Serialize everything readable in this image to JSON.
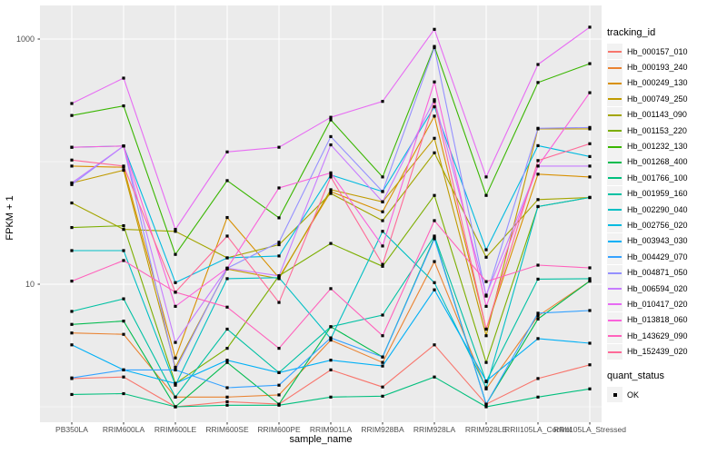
{
  "figure": {
    "background": "#FFFFFF",
    "panel_background": "#EBEBEB",
    "grid_color": "#FFFFFF",
    "point_color": "#000000",
    "axis_text_color": "#4D4D4D",
    "tick_color": "#333333"
  },
  "axes": {
    "x_title": "sample_name",
    "y_title": "FPKM + 1",
    "y_ticks": [
      {
        "label": "1000",
        "value": 1000
      },
      {
        "label": "10",
        "value": 10
      }
    ]
  },
  "legend": {
    "tracking_title": "tracking_id",
    "quant_title": "quant_status",
    "quant_ok_label": "OK"
  },
  "chart_data": {
    "type": "line",
    "title": "",
    "xlabel": "sample_name",
    "ylabel": "FPKM + 1",
    "y_scale": "log10",
    "ylim": [
      0.75,
      1900
    ],
    "grid": true,
    "legend_position": "right",
    "point_marker": "black-square",
    "major_gridlines_y": [
      10,
      1000
    ],
    "minor_gridlines_y": [
      1,
      100
    ],
    "categories": [
      "PB350LA",
      "RRIM600LA",
      "RRIM600LE",
      "RRIM600SE",
      "RRIM600PE",
      "RRIM901LA",
      "RRIM928BA",
      "RRIM928LA",
      "RRIM928LE",
      "RRII105LA_Control",
      "RRII105LA_Stressed"
    ],
    "series": [
      {
        "name": "Hb_000157_010",
        "color": "#F8766D",
        "values": [
          1.7,
          1.75,
          1.0,
          1.1,
          1.05,
          2.0,
          1.45,
          3.2,
          1.05,
          1.7,
          2.2
        ]
      },
      {
        "name": "Hb_000193_240",
        "color": "#EA8331",
        "values": [
          4.0,
          3.9,
          1.2,
          1.2,
          1.25,
          3.5,
          2.3,
          15.3,
          1.4,
          5.5,
          10.6
        ]
      },
      {
        "name": "Hb_000249_130",
        "color": "#D89000",
        "values": [
          92,
          90,
          2.5,
          35,
          11.3,
          57,
          39,
          235,
          4.3,
          79,
          75
        ]
      },
      {
        "name": "Hb_000749_250",
        "color": "#C09B00",
        "values": [
          67,
          85,
          2.1,
          13.3,
          11.1,
          59,
          47,
          155,
          3.8,
          185,
          185
        ]
      },
      {
        "name": "Hb_001143_090",
        "color": "#A3A500",
        "values": [
          46,
          28,
          27,
          16.4,
          21,
          55,
          33,
          118,
          16.6,
          49,
          51
        ]
      },
      {
        "name": "Hb_001153_220",
        "color": "#7CAE00",
        "values": [
          29,
          30,
          1.55,
          3.0,
          11.7,
          21.5,
          14,
          53,
          2.3,
          43,
          51
        ]
      },
      {
        "name": "Hb_001232_130",
        "color": "#39B600",
        "values": [
          238,
          285,
          17.5,
          70,
          34.8,
          219,
          75,
          870,
          53,
          442,
          630
        ]
      },
      {
        "name": "Hb_001268_400",
        "color": "#00BB4E",
        "values": [
          4.7,
          5.0,
          1.0,
          2.3,
          1.05,
          4.5,
          2.55,
          24,
          1.05,
          5.2,
          10.6
        ]
      },
      {
        "name": "Hb_001766_100",
        "color": "#00BF7D",
        "values": [
          1.26,
          1.28,
          1.0,
          1.03,
          1.03,
          1.2,
          1.22,
          1.75,
          1.0,
          1.2,
          1.4
        ]
      },
      {
        "name": "Hb_001959_160",
        "color": "#00C1A3",
        "values": [
          6.0,
          7.6,
          1.2,
          4.3,
          1.9,
          4.5,
          5.6,
          24.7,
          1.6,
          11,
          11.1
        ]
      },
      {
        "name": "Hb_002290_040",
        "color": "#00BFC4",
        "values": [
          18.8,
          18.8,
          1.5,
          11.1,
          11.3,
          3.6,
          27,
          10.3,
          1.43,
          43,
          51
        ]
      },
      {
        "name": "Hb_002756_020",
        "color": "#00BAE0",
        "values": [
          131,
          134,
          10.3,
          16.4,
          17,
          78,
          57,
          280,
          19.1,
          135,
          110
        ]
      },
      {
        "name": "Hb_003943_030",
        "color": "#00B0F6",
        "values": [
          3.2,
          2.0,
          1.55,
          2.4,
          1.9,
          2.4,
          2.15,
          9.0,
          1.62,
          3.6,
          3.3
        ]
      },
      {
        "name": "Hb_004429_070",
        "color": "#35A2FF",
        "values": [
          1.72,
          2.0,
          2.0,
          1.43,
          1.5,
          3.65,
          2.55,
          23.5,
          1.05,
          5.8,
          6.1
        ]
      },
      {
        "name": "Hb_004871_050",
        "color": "#9590FF",
        "values": [
          65,
          134,
          2.0,
          13.5,
          22,
          160,
          57,
          850,
          8.0,
          187,
          190
        ]
      },
      {
        "name": "Hb_006594_020",
        "color": "#C77CFF",
        "values": [
          67,
          134,
          3.35,
          13.5,
          11.7,
          137,
          47,
          320,
          8.15,
          92,
          92
        ]
      },
      {
        "name": "Hb_010417_020",
        "color": "#E76BF3",
        "values": [
          298,
          480,
          28,
          120,
          131,
          230,
          310,
          1200,
          75,
          620,
          1250
        ]
      },
      {
        "name": "Hb_013818_060",
        "color": "#FA62DB",
        "values": [
          131,
          134,
          6.6,
          13.5,
          61,
          81,
          20.5,
          447,
          6.6,
          92,
          365
        ]
      },
      {
        "name": "Hb_143629_090",
        "color": "#FF62BC",
        "values": [
          10.6,
          15.6,
          8.6,
          6.5,
          3.0,
          9.2,
          3.8,
          33,
          10.5,
          14.3,
          13.6
        ]
      },
      {
        "name": "Hb_152439_020",
        "color": "#FF6A98",
        "values": [
          103,
          92,
          8.6,
          24.7,
          7.1,
          75,
          14.5,
          310,
          4.3,
          102,
          140
        ]
      }
    ]
  }
}
